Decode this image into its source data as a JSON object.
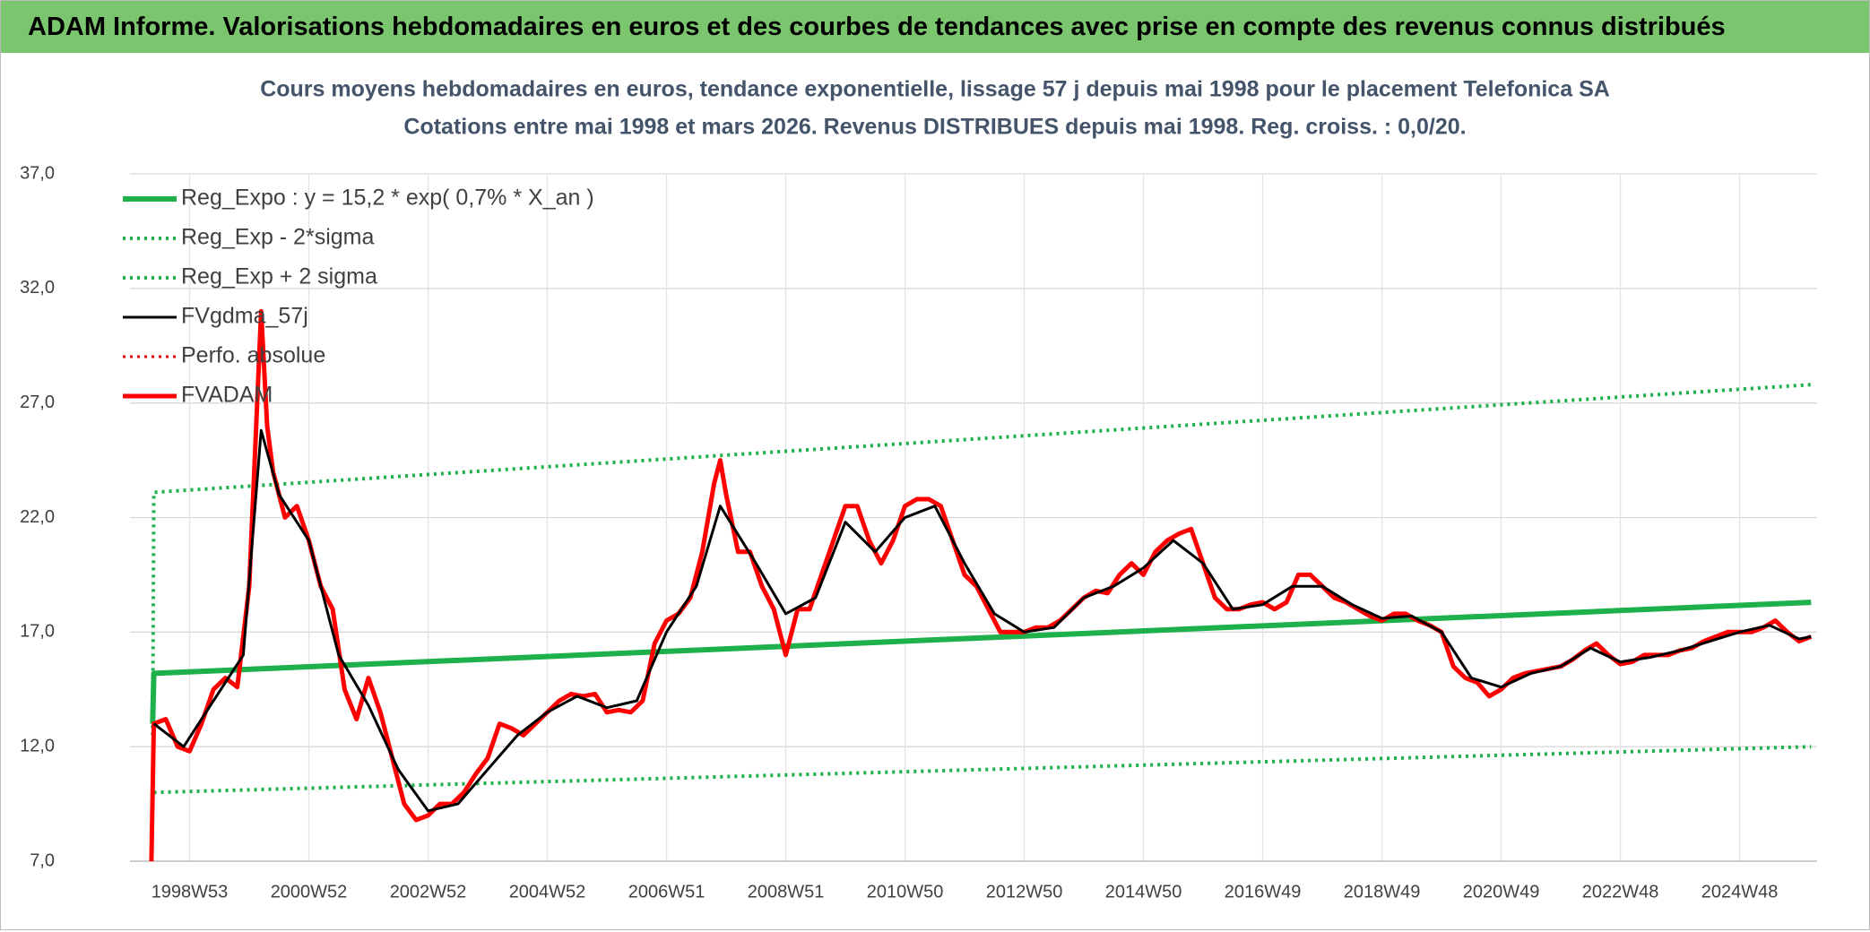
{
  "header": {
    "title": "ADAM Informe. Valorisations hebdomadaires en euros et des courbes de tendances avec prise en compte des revenus connus distribués"
  },
  "chart_data": {
    "type": "line",
    "title": "Cours moyens hebdomadaires en euros, tendance exponentielle, lissage 57 j depuis mai 1998 pour le placement Telefonica SA",
    "subtitle": "Cotations entre mai 1998 et mars 2026. Revenus DISTRIBUES depuis mai 1998. Reg. croiss. : 0,0/20.",
    "grid": true,
    "legend": "top-left",
    "xlim": [
      1998.0,
      2026.3
    ],
    "xticks": [
      {
        "value": 1999.0,
        "label": "1998W53"
      },
      {
        "value": 2001.0,
        "label": "2000W52"
      },
      {
        "value": 2003.0,
        "label": "2002W52"
      },
      {
        "value": 2005.0,
        "label": "2004W52"
      },
      {
        "value": 2007.0,
        "label": "2006W51"
      },
      {
        "value": 2009.0,
        "label": "2008W51"
      },
      {
        "value": 2011.0,
        "label": "2010W50"
      },
      {
        "value": 2013.0,
        "label": "2012W50"
      },
      {
        "value": 2015.0,
        "label": "2014W50"
      },
      {
        "value": 2017.0,
        "label": "2016W49"
      },
      {
        "value": 2019.0,
        "label": "2018W49"
      },
      {
        "value": 2021.0,
        "label": "2020W49"
      },
      {
        "value": 2023.0,
        "label": "2022W48"
      },
      {
        "value": 2025.0,
        "label": "2024W48"
      }
    ],
    "ylim": [
      7,
      37
    ],
    "yticks": [
      {
        "value": 7,
        "label": "7,0"
      },
      {
        "value": 12,
        "label": "12,0"
      },
      {
        "value": 17,
        "label": "17,0"
      },
      {
        "value": 22,
        "label": "22,0"
      },
      {
        "value": 27,
        "label": "27,0"
      },
      {
        "value": 32,
        "label": "32,0"
      },
      {
        "value": 37,
        "label": "37,0"
      }
    ],
    "series": [
      {
        "name": "Reg_Expo : y = 15,2 * exp( 0,7% *  X_an )",
        "color": "#1db04b",
        "line_style": "solid",
        "x": [
          1998.38,
          1998.4,
          2026.2
        ],
        "values": [
          13,
          15.2,
          18.3
        ]
      },
      {
        "name": "Reg_Exp - 2*sigma",
        "color": "#1db04b",
        "line_style": "dotted",
        "x": [
          1998.4,
          2026.2
        ],
        "values": [
          10,
          12
        ]
      },
      {
        "name": "Reg_Exp + 2 sigma",
        "color": "#1db04b",
        "line_style": "dotted",
        "x": [
          1998.38,
          1998.4,
          2026.2
        ],
        "values": [
          12.5,
          23.1,
          27.8
        ]
      },
      {
        "name": "FVgdma_57j",
        "color": "#000000",
        "line_style": "solid",
        "x": [
          1998.4,
          1998.9,
          1999.4,
          1999.9,
          2000.2,
          2000.5,
          2001.0,
          2001.5,
          2002.0,
          2002.5,
          2003.0,
          2003.5,
          2004.0,
          2004.5,
          2005.0,
          2005.5,
          2006.0,
          2006.5,
          2007.0,
          2007.5,
          2007.9,
          2008.5,
          2009.0,
          2009.5,
          2010.0,
          2010.5,
          2011.0,
          2011.5,
          2012.0,
          2012.5,
          2013.0,
          2013.5,
          2014.0,
          2014.5,
          2015.0,
          2015.5,
          2016.0,
          2016.5,
          2017.0,
          2017.5,
          2018.0,
          2018.5,
          2019.0,
          2019.5,
          2020.0,
          2020.5,
          2021.0,
          2021.5,
          2022.0,
          2022.5,
          2023.0,
          2023.5,
          2024.0,
          2024.5,
          2025.0,
          2025.5,
          2026.0,
          2026.2
        ],
        "values": [
          13,
          12,
          14,
          16,
          25.8,
          23,
          21,
          16,
          13.8,
          11,
          9.2,
          9.5,
          11,
          12.5,
          13.5,
          14.2,
          13.7,
          14,
          17,
          19,
          22.5,
          20,
          17.8,
          18.5,
          21.8,
          20.5,
          22,
          22.5,
          20,
          17.8,
          17,
          17.2,
          18.5,
          19,
          19.8,
          21,
          20,
          18,
          18.2,
          19,
          19,
          18.2,
          17.6,
          17.7,
          17,
          15,
          14.6,
          15.2,
          15.5,
          16.3,
          15.7,
          15.9,
          16.2,
          16.6,
          17,
          17.3,
          16.7,
          16.8
        ]
      },
      {
        "name": "Perfo. absolue",
        "color": "#ff0000",
        "line_style": "dotted",
        "x": [],
        "values": []
      },
      {
        "name": "FVADAM",
        "color": "#ff0000",
        "line_style": "solid",
        "x": [
          1998.36,
          1998.4,
          1998.6,
          1998.8,
          1999.0,
          1999.2,
          1999.4,
          1999.6,
          1999.8,
          2000.0,
          2000.1,
          2000.2,
          2000.3,
          2000.4,
          2000.6,
          2000.8,
          2001.0,
          2001.2,
          2001.4,
          2001.6,
          2001.8,
          2002.0,
          2002.2,
          2002.4,
          2002.6,
          2002.8,
          2003.0,
          2003.2,
          2003.4,
          2003.6,
          2003.8,
          2004.0,
          2004.2,
          2004.4,
          2004.6,
          2004.8,
          2005.0,
          2005.2,
          2005.4,
          2005.6,
          2005.8,
          2006.0,
          2006.2,
          2006.4,
          2006.6,
          2006.8,
          2007.0,
          2007.2,
          2007.4,
          2007.6,
          2007.8,
          2007.9,
          2008.0,
          2008.2,
          2008.4,
          2008.6,
          2008.8,
          2009.0,
          2009.2,
          2009.4,
          2009.6,
          2009.8,
          2010.0,
          2010.2,
          2010.4,
          2010.6,
          2010.8,
          2011.0,
          2011.2,
          2011.4,
          2011.6,
          2011.8,
          2012.0,
          2012.2,
          2012.4,
          2012.6,
          2012.8,
          2013.0,
          2013.2,
          2013.4,
          2013.6,
          2013.8,
          2014.0,
          2014.2,
          2014.4,
          2014.6,
          2014.8,
          2015.0,
          2015.2,
          2015.4,
          2015.6,
          2015.8,
          2016.0,
          2016.2,
          2016.4,
          2016.6,
          2016.8,
          2017.0,
          2017.2,
          2017.4,
          2017.6,
          2017.8,
          2018.0,
          2018.2,
          2018.4,
          2018.6,
          2018.8,
          2019.0,
          2019.2,
          2019.4,
          2019.6,
          2019.8,
          2020.0,
          2020.2,
          2020.4,
          2020.6,
          2020.8,
          2021.0,
          2021.2,
          2021.4,
          2021.6,
          2021.8,
          2022.0,
          2022.2,
          2022.4,
          2022.6,
          2022.8,
          2023.0,
          2023.2,
          2023.4,
          2023.6,
          2023.8,
          2024.0,
          2024.2,
          2024.4,
          2024.6,
          2024.8,
          2025.0,
          2025.2,
          2025.4,
          2025.6,
          2025.8,
          2026.0,
          2026.2
        ],
        "values": [
          7,
          13,
          13.2,
          12,
          11.8,
          13,
          14.5,
          15,
          14.6,
          19,
          25,
          31,
          26,
          24,
          22,
          22.5,
          21,
          19,
          18,
          14.5,
          13.2,
          15,
          13.5,
          11.5,
          9.5,
          8.8,
          9,
          9.5,
          9.5,
          10,
          10.8,
          11.5,
          13,
          12.8,
          12.5,
          13,
          13.5,
          14,
          14.3,
          14.2,
          14.3,
          13.5,
          13.6,
          13.5,
          14,
          16.5,
          17.5,
          17.8,
          18.5,
          20.5,
          23.5,
          24.5,
          23,
          20.5,
          20.5,
          19,
          18,
          16,
          18,
          18,
          19.5,
          21,
          22.5,
          22.5,
          21,
          20,
          21,
          22.5,
          22.8,
          22.8,
          22.5,
          21,
          19.5,
          19,
          18,
          17,
          17,
          17,
          17.2,
          17.2,
          17.5,
          18,
          18.5,
          18.8,
          18.7,
          19.5,
          20,
          19.5,
          20.5,
          21,
          21.3,
          21.5,
          20,
          18.5,
          18,
          18,
          18.2,
          18.3,
          18,
          18.3,
          19.5,
          19.5,
          19,
          18.5,
          18.3,
          18,
          17.7,
          17.5,
          17.8,
          17.8,
          17.5,
          17.3,
          17,
          15.5,
          15,
          14.8,
          14.2,
          14.5,
          15,
          15.2,
          15.3,
          15.4,
          15.5,
          15.8,
          16.2,
          16.5,
          16,
          15.6,
          15.7,
          16,
          16,
          16,
          16.2,
          16.3,
          16.6,
          16.8,
          17,
          17,
          17,
          17.2,
          17.5,
          17,
          16.6,
          16.8
        ]
      }
    ]
  }
}
